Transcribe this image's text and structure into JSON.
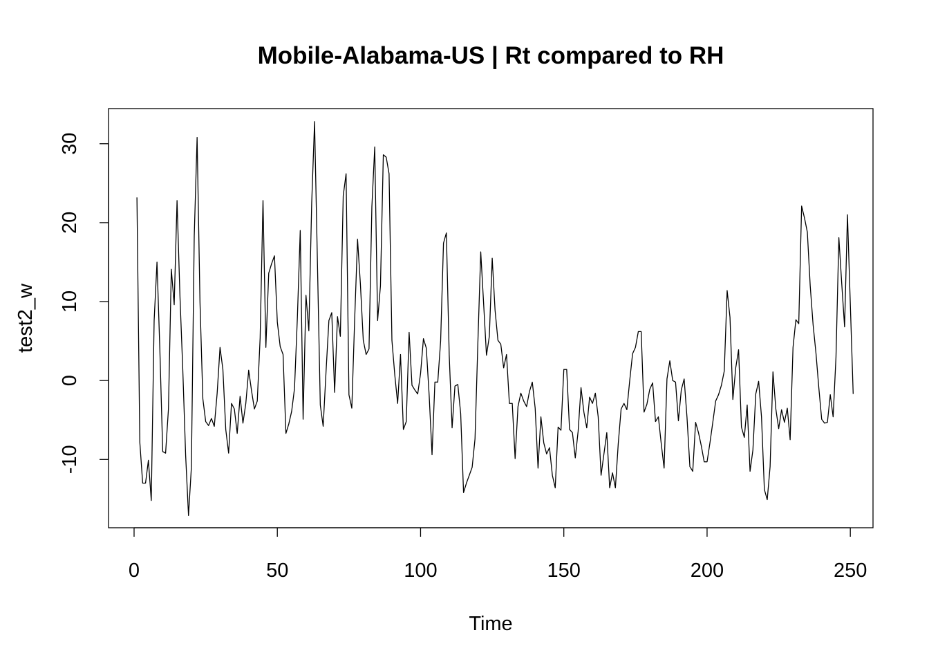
{
  "chart_data": {
    "type": "line",
    "title": "Mobile-Alabama-US | Rt compared to RH",
    "xlabel": "Time",
    "ylabel": "test2_w",
    "xlim": [
      -8.92,
      257.92
    ],
    "ylim": [
      -18.65,
      34.45
    ],
    "xticks": [
      0,
      50,
      100,
      150,
      200,
      250
    ],
    "yticks": [
      -10,
      0,
      10,
      20,
      30
    ],
    "xtick_labels": [
      "0",
      "50",
      "100",
      "150",
      "200",
      "250"
    ],
    "ytick_labels": [
      "-10",
      "0",
      "10",
      "20",
      "30"
    ],
    "grid": false,
    "legend": "none",
    "line_color": "#000000",
    "series": [
      {
        "x_start": 1,
        "x_step": 1,
        "values": [
          23.2,
          -7.8,
          -13.0,
          -13.0,
          -10.1,
          -15.2,
          7.6,
          15.0,
          3.9,
          -9.0,
          -9.2,
          -3.6,
          14.1,
          9.6,
          22.8,
          10.8,
          1.4,
          -9.5,
          -17.1,
          -11.0,
          18.3,
          30.8,
          10.0,
          -2.3,
          -5.2,
          -5.7,
          -4.8,
          -5.8,
          -1.6,
          4.2,
          1.4,
          -6.2,
          -9.2,
          -2.9,
          -3.6,
          -6.7,
          -2.0,
          -5.4,
          -2.9,
          1.3,
          -1.3,
          -3.6,
          -2.6,
          5.4,
          22.8,
          4.2,
          13.6,
          14.8,
          15.8,
          7.4,
          4.3,
          3.3,
          -6.7,
          -5.5,
          -3.9,
          -1.0,
          8.0,
          19.0,
          -4.9,
          10.8,
          6.3,
          22.5,
          32.8,
          14.9,
          -3.1,
          -5.8,
          1.1,
          7.6,
          8.6,
          -1.5,
          8.1,
          5.6,
          23.4,
          26.2,
          -1.8,
          -3.5,
          7.8,
          17.9,
          12.2,
          5.1,
          3.3,
          4.0,
          22.0,
          29.6,
          7.6,
          12.0,
          28.6,
          28.3,
          26.2,
          5.1,
          0.7,
          -2.9,
          3.3,
          -6.2,
          -5.2,
          6.1,
          -0.6,
          -1.2,
          -1.7,
          0.9,
          5.3,
          4.1,
          -1.9,
          -9.4,
          -0.2,
          -0.2,
          5.0,
          17.4,
          18.7,
          3.2,
          -6.0,
          -0.7,
          -0.5,
          -4.2,
          -14.2,
          -13.0,
          -12.0,
          -11.0,
          -7.4,
          4.8,
          16.3,
          9.8,
          3.2,
          5.6,
          15.5,
          8.9,
          5.1,
          4.6,
          1.6,
          3.3,
          -2.9,
          -2.9,
          -9.9,
          -3.3,
          -1.6,
          -2.6,
          -3.3,
          -1.4,
          -0.2,
          -3.5,
          -11.1,
          -4.6,
          -7.9,
          -9.3,
          -8.5,
          -12.0,
          -13.6,
          -5.9,
          -6.3,
          1.4,
          1.4,
          -6.2,
          -6.6,
          -9.8,
          -6.4,
          -0.9,
          -4.0,
          -6.0,
          -2.1,
          -2.9,
          -1.6,
          -4.6,
          -12.0,
          -9.3,
          -6.6,
          -13.6,
          -11.7,
          -13.6,
          -8.0,
          -3.6,
          -2.9,
          -3.7,
          0.0,
          3.4,
          4.2,
          6.2,
          6.2,
          -4.0,
          -3.0,
          -1.1,
          -0.3,
          -5.2,
          -4.6,
          -8.0,
          -11.1,
          0.2,
          2.5,
          0.0,
          -0.2,
          -5.1,
          -1.2,
          0.2,
          -4.7,
          -10.9,
          -11.5,
          -5.3,
          -6.6,
          -8.3,
          -10.3,
          -10.3,
          -7.9,
          -5.3,
          -2.6,
          -1.8,
          -0.6,
          1.2,
          11.4,
          8.0,
          -2.4,
          1.6,
          3.9,
          -5.9,
          -7.2,
          -3.1,
          -11.5,
          -8.8,
          -1.7,
          -0.1,
          -4.6,
          -13.8,
          -15.1,
          -10.9,
          1.1,
          -3.6,
          -6.1,
          -3.7,
          -5.3,
          -3.5,
          -7.5,
          4.2,
          7.7,
          7.2,
          22.1,
          20.6,
          18.8,
          12.0,
          7.1,
          3.5,
          -0.9,
          -4.9,
          -5.4,
          -5.3,
          -1.8,
          -4.6,
          3.0,
          18.1,
          12.3,
          6.8,
          21.0,
          9.7,
          -1.7
        ]
      }
    ]
  }
}
